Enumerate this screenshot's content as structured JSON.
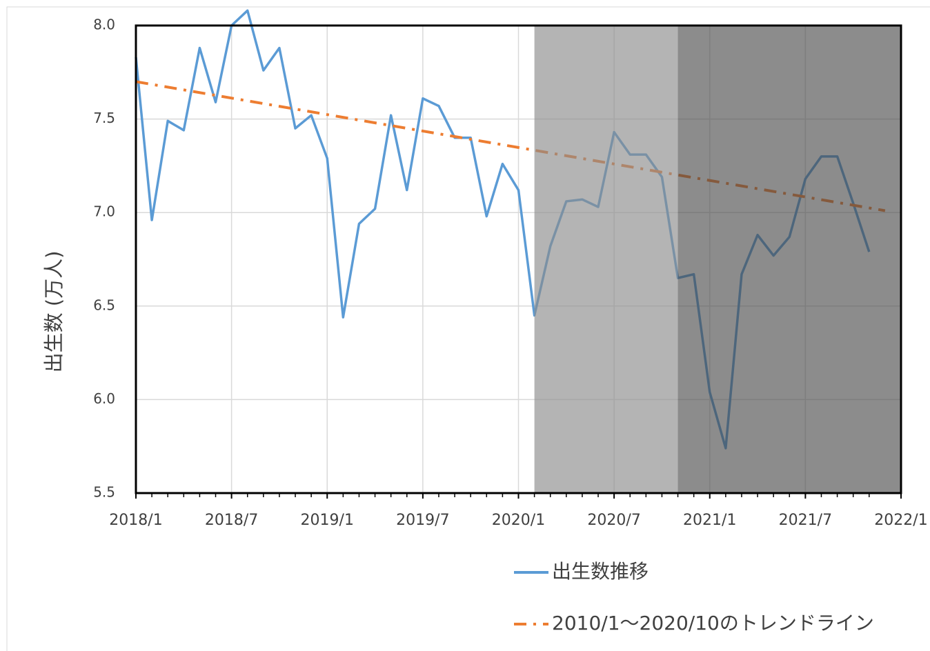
{
  "chart_data": {
    "type": "line",
    "ylabel": "出生数 (万人)",
    "x": [
      "2018/1",
      "2018/2",
      "2018/3",
      "2018/4",
      "2018/5",
      "2018/6",
      "2018/7",
      "2018/8",
      "2018/9",
      "2018/10",
      "2018/11",
      "2018/12",
      "2019/1",
      "2019/2",
      "2019/3",
      "2019/4",
      "2019/5",
      "2019/6",
      "2019/7",
      "2019/8",
      "2019/9",
      "2019/10",
      "2019/11",
      "2019/12",
      "2020/1",
      "2020/2",
      "2020/3",
      "2020/4",
      "2020/5",
      "2020/6",
      "2020/7",
      "2020/8",
      "2020/9",
      "2020/10",
      "2020/11",
      "2020/12",
      "2021/1",
      "2021/2",
      "2021/3",
      "2021/4",
      "2021/5",
      "2021/6",
      "2021/7",
      "2021/8",
      "2021/9",
      "2021/10",
      "2021/11"
    ],
    "series": [
      {
        "name": "出生数推移",
        "color": "#5b9bd5",
        "style": "solid",
        "values": [
          7.83,
          6.96,
          7.49,
          7.44,
          7.88,
          7.59,
          8.0,
          8.08,
          7.76,
          7.88,
          7.45,
          7.52,
          7.29,
          6.44,
          6.94,
          7.02,
          7.52,
          7.12,
          7.61,
          7.57,
          7.4,
          7.4,
          6.98,
          7.26,
          7.12,
          6.45,
          6.82,
          7.06,
          7.07,
          7.03,
          7.43,
          7.31,
          7.31,
          7.19,
          6.65,
          6.67,
          6.04,
          5.74,
          6.67,
          6.88,
          6.77,
          6.87,
          7.18,
          7.3,
          7.3,
          7.05,
          6.79
        ]
      },
      {
        "name": "2010/1〜2020/10のトレンドライン",
        "color": "#ed7d31",
        "style": "dash-dot",
        "x": [
          "2018/1",
          "2021/12"
        ],
        "values": [
          7.7,
          7.01
        ]
      }
    ],
    "bands": [
      {
        "from": "2020/2",
        "to": "2020/11",
        "color": "rgba(140,140,140,0.65)"
      },
      {
        "from": "2020/11",
        "to": "2022/1",
        "color": "rgba(70,70,70,0.62)"
      }
    ],
    "xlim": [
      "2018/1",
      "2022/1"
    ],
    "xticks": [
      "2018/1",
      "2018/7",
      "2019/1",
      "2019/7",
      "2020/1",
      "2020/7",
      "2021/1",
      "2021/7",
      "2022/1"
    ],
    "ylim": [
      5.5,
      8.0
    ],
    "yticks": [
      5.5,
      {
        "value": 6,
        "label": "6.0"
      },
      6.5,
      {
        "value": 7,
        "label": "7.0"
      },
      7.5,
      {
        "value": 8,
        "label": "8.0"
      }
    ],
    "grid": true
  }
}
